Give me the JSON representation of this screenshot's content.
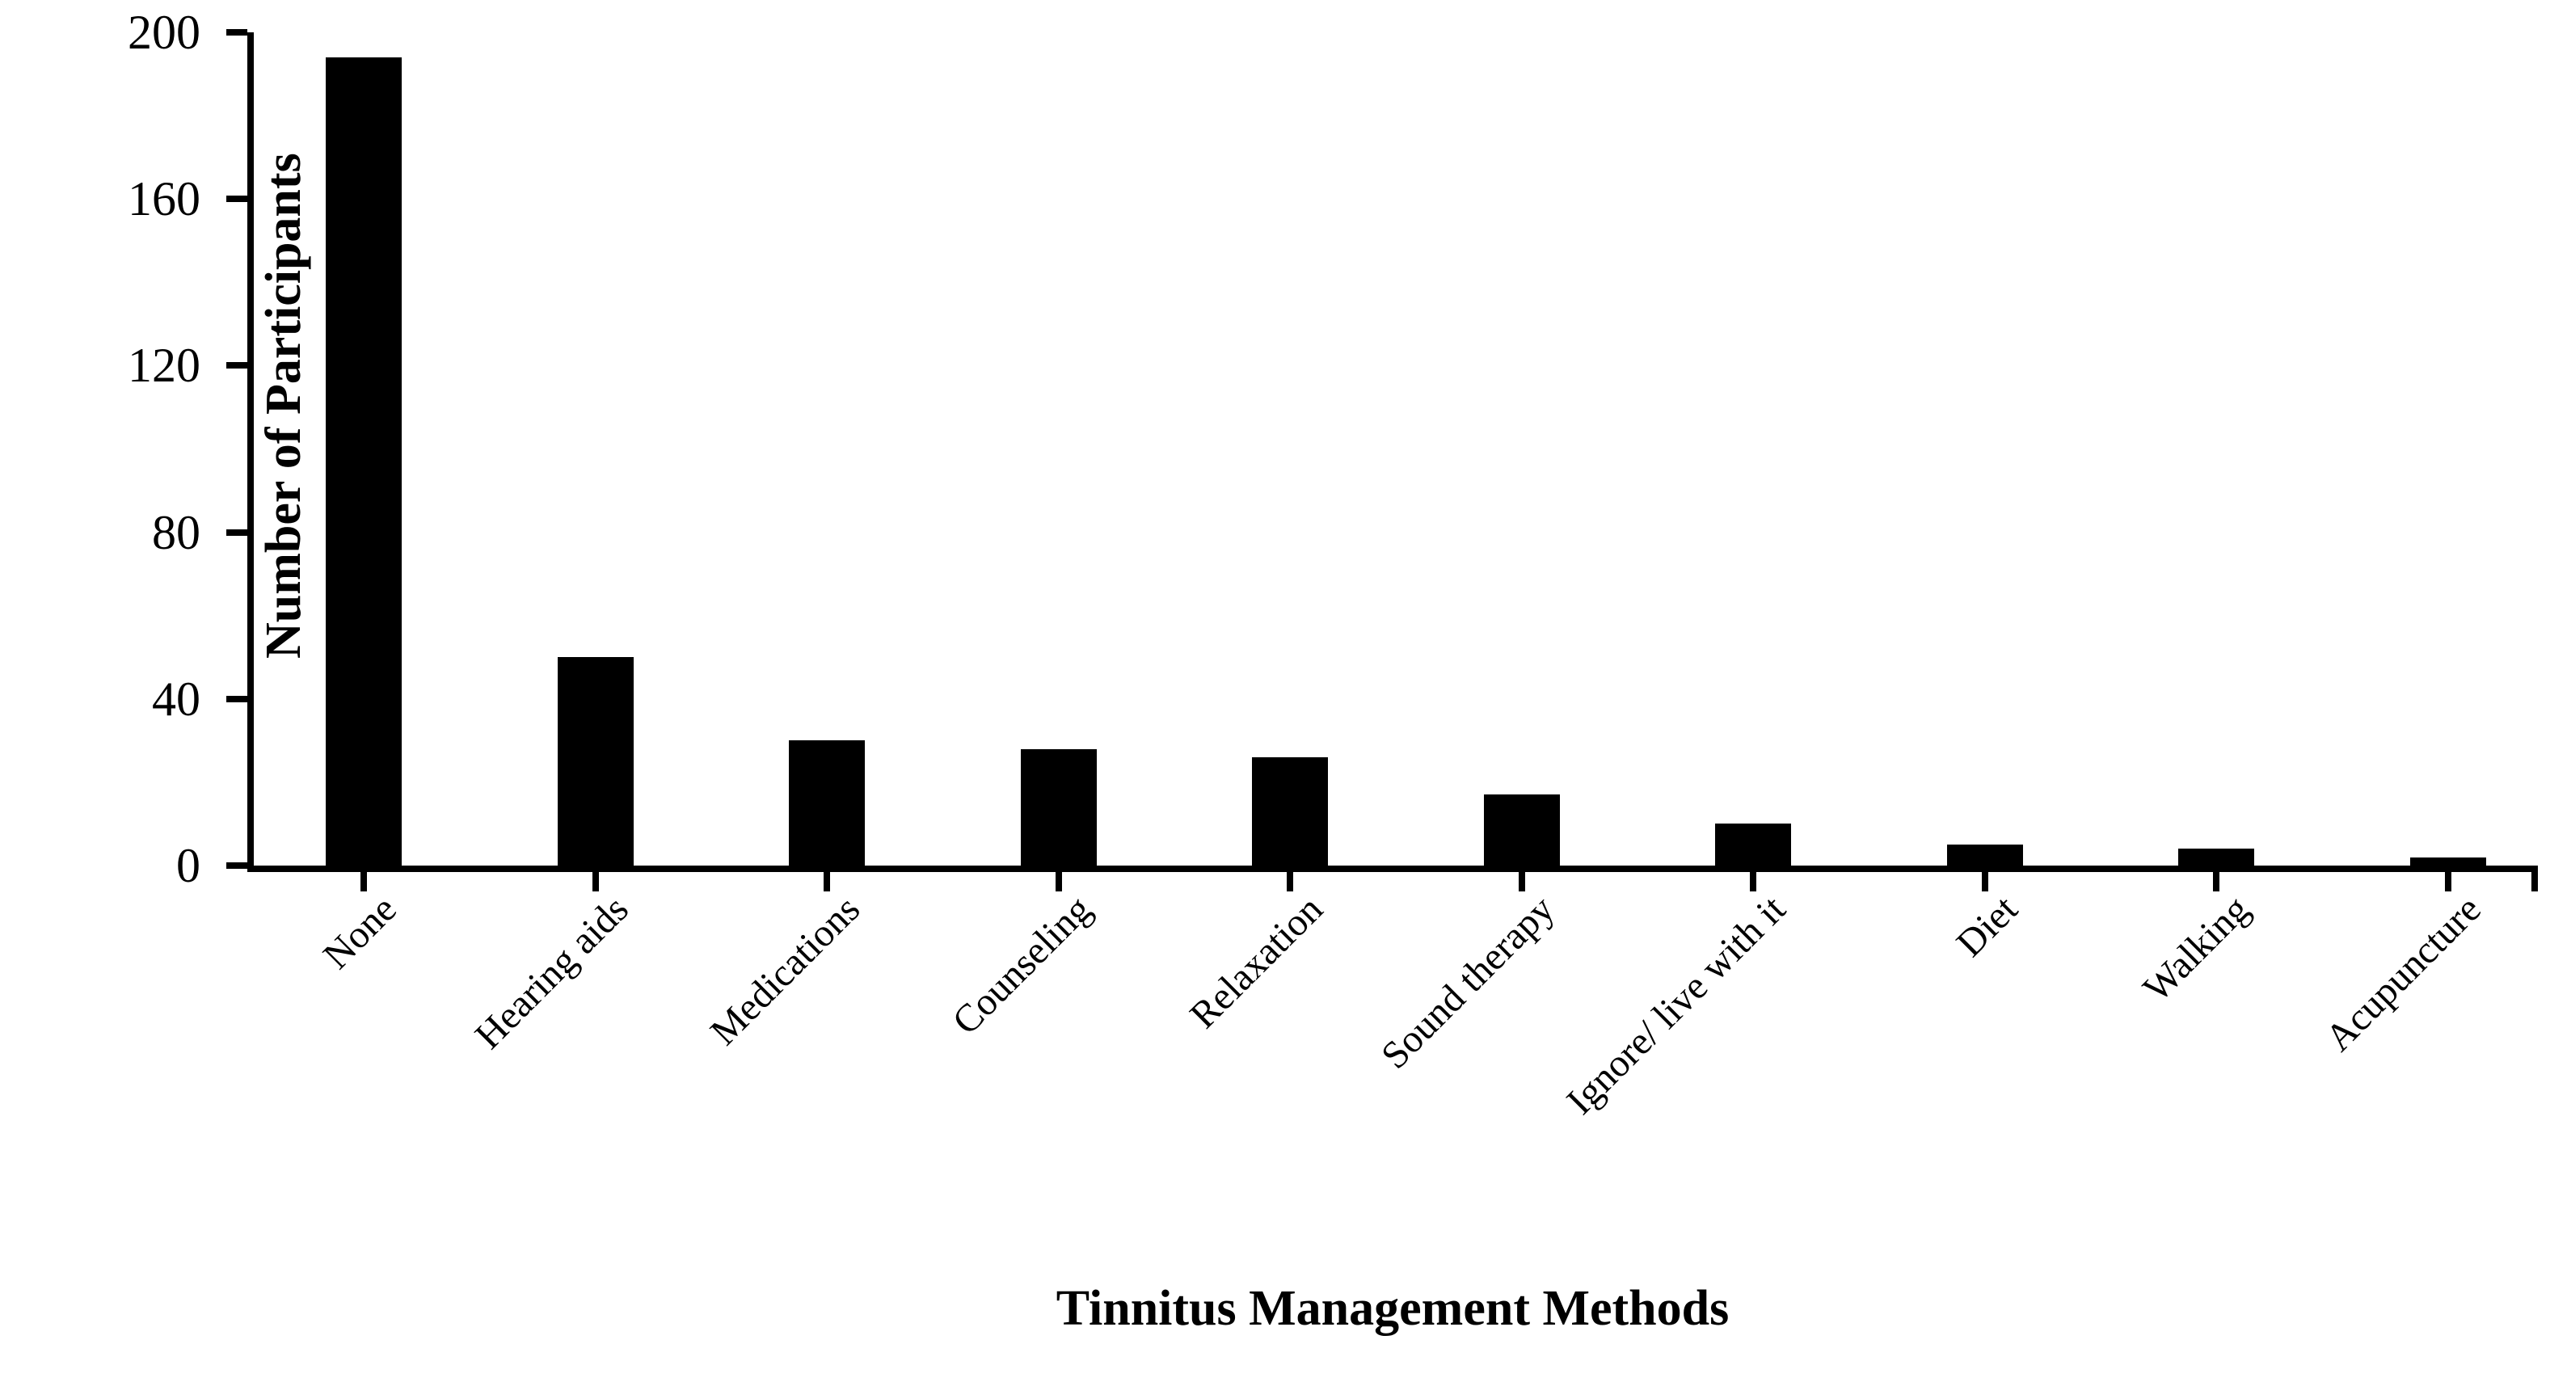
{
  "chart_data": {
    "type": "bar",
    "title": "",
    "xlabel": "Tinnitus Management Methods",
    "ylabel": "Number of Participants",
    "categories": [
      "None",
      "Hearing aids",
      "Medications",
      "Counseling",
      "Relaxation",
      "Sound therapy",
      "Ignore/ live with it",
      "Diet",
      "Walking",
      "Acupuncture"
    ],
    "values": [
      194,
      50,
      30,
      28,
      26,
      17,
      10,
      5,
      4,
      2
    ],
    "ylim": [
      0,
      200
    ],
    "yticks": [
      0,
      40,
      80,
      120,
      160,
      200
    ],
    "bar_color": "#000000",
    "axis_color": "#000000",
    "background_color": "#ffffff",
    "grid": "off",
    "legend": "none",
    "tick_style": "outside",
    "x_label_rotation_deg": 45
  }
}
